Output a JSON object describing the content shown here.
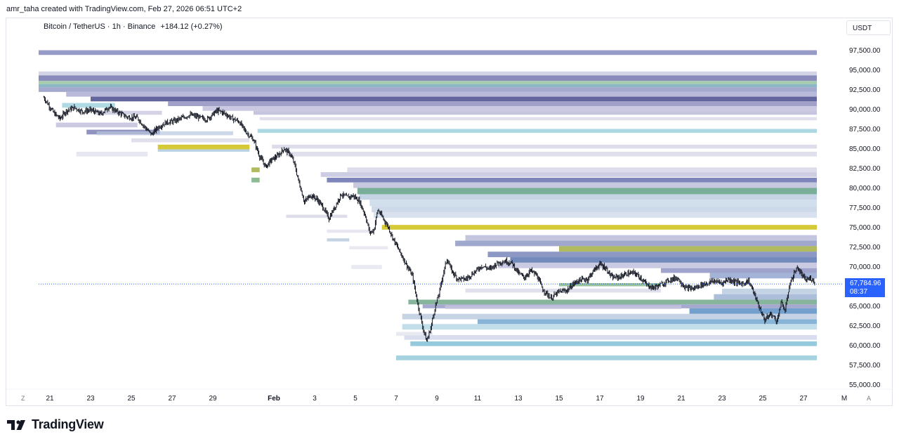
{
  "header": {
    "credit": "amr_taha created with TradingView.com, Feb 27, 2026 06:51 UTC+2"
  },
  "legend": {
    "title": "Bitcoin / TetherUS · 1h · Binance",
    "change": "+184.12 (+0.27%)"
  },
  "currency_button": "USDT",
  "price_tag": {
    "price": "67,784.96",
    "countdown": "08:37"
  },
  "corner_buttons": {
    "left": "Z",
    "right": "A"
  },
  "footer": {
    "logo_text": "TradingView"
  },
  "colors": {
    "accent": "#2962ff",
    "candle": "#131722",
    "band_purple": "#7d7fb4",
    "band_violet": "#b6b4d3",
    "band_blue": "#5b8fc3",
    "band_cyan": "#9fd0df",
    "band_green": "#6fae90",
    "band_yellow": "#d4c62d",
    "band_light": "#e2e3ee"
  },
  "chart_data": {
    "type": "line",
    "symbol": "BTCUSDT",
    "interval": "1h",
    "ylim": [
      54000,
      99500
    ],
    "y_ticks": [
      "97,500.00",
      "95,000.00",
      "92,500.00",
      "90,000.00",
      "87,500.00",
      "85,000.00",
      "82,500.00",
      "80,000.00",
      "77,500.00",
      "75,000.00",
      "72,500.00",
      "70,000.00",
      "67,500.00",
      "65,000.00",
      "62,500.00",
      "60,000.00",
      "57,500.00",
      "55,000.00"
    ],
    "y_tick_values": [
      97500,
      95000,
      92500,
      90000,
      87500,
      85000,
      82500,
      80000,
      77500,
      75000,
      72500,
      70000,
      67500,
      65000,
      62500,
      60000,
      57500,
      55000
    ],
    "x_ticks": [
      {
        "label": "21",
        "day": 0
      },
      {
        "label": "23",
        "day": 2
      },
      {
        "label": "25",
        "day": 4
      },
      {
        "label": "27",
        "day": 6
      },
      {
        "label": "29",
        "day": 8
      },
      {
        "label": "Feb",
        "day": 11
      },
      {
        "label": "3",
        "day": 13
      },
      {
        "label": "5",
        "day": 15
      },
      {
        "label": "7",
        "day": 17
      },
      {
        "label": "9",
        "day": 19
      },
      {
        "label": "11",
        "day": 21
      },
      {
        "label": "13",
        "day": 23
      },
      {
        "label": "15",
        "day": 25
      },
      {
        "label": "17",
        "day": 27
      },
      {
        "label": "19",
        "day": 29
      },
      {
        "label": "21",
        "day": 31
      },
      {
        "label": "23",
        "day": 33
      },
      {
        "label": "25",
        "day": 35
      },
      {
        "label": "27",
        "day": 37
      },
      {
        "label": "M",
        "day": 39
      }
    ],
    "last_price": 67784.96,
    "price_path": [
      [
        -0.3,
        91500
      ],
      [
        0.2,
        89500
      ],
      [
        0.5,
        88800
      ],
      [
        0.8,
        89800
      ],
      [
        1.2,
        90200
      ],
      [
        1.6,
        89700
      ],
      [
        2.0,
        89900
      ],
      [
        2.5,
        89400
      ],
      [
        2.9,
        90300
      ],
      [
        3.3,
        89700
      ],
      [
        3.8,
        89000
      ],
      [
        4.3,
        88900
      ],
      [
        4.7,
        87600
      ],
      [
        5.0,
        86800
      ],
      [
        5.3,
        87700
      ],
      [
        5.7,
        88300
      ],
      [
        6.1,
        88500
      ],
      [
        6.5,
        88900
      ],
      [
        6.9,
        89300
      ],
      [
        7.3,
        89000
      ],
      [
        7.7,
        88700
      ],
      [
        8.2,
        89800
      ],
      [
        8.5,
        89600
      ],
      [
        8.9,
        88900
      ],
      [
        9.3,
        88400
      ],
      [
        9.6,
        87200
      ],
      [
        10.0,
        86100
      ],
      [
        10.3,
        84000
      ],
      [
        10.6,
        82700
      ],
      [
        10.9,
        83600
      ],
      [
        11.2,
        84100
      ],
      [
        11.5,
        85000
      ],
      [
        11.8,
        84300
      ],
      [
        12.0,
        83100
      ],
      [
        12.2,
        81000
      ],
      [
        12.5,
        78200
      ],
      [
        12.8,
        79100
      ],
      [
        13.1,
        78600
      ],
      [
        13.4,
        77600
      ],
      [
        13.7,
        76100
      ],
      [
        14.0,
        77600
      ],
      [
        14.3,
        79200
      ],
      [
        14.6,
        78800
      ],
      [
        14.9,
        79000
      ],
      [
        15.2,
        78300
      ],
      [
        15.5,
        76400
      ],
      [
        15.7,
        74300
      ],
      [
        15.9,
        74600
      ],
      [
        16.1,
        77200
      ],
      [
        16.3,
        76400
      ],
      [
        16.6,
        75100
      ],
      [
        16.9,
        73300
      ],
      [
        17.2,
        71800
      ],
      [
        17.5,
        70300
      ],
      [
        17.8,
        68800
      ],
      [
        18.1,
        64800
      ],
      [
        18.3,
        62400
      ],
      [
        18.5,
        60500
      ],
      [
        18.7,
        62200
      ],
      [
        18.9,
        64700
      ],
      [
        19.1,
        66500
      ],
      [
        19.3,
        69000
      ],
      [
        19.5,
        71000
      ],
      [
        19.7,
        69600
      ],
      [
        20.0,
        68500
      ],
      [
        20.4,
        68400
      ],
      [
        20.8,
        69200
      ],
      [
        21.2,
        70100
      ],
      [
        21.6,
        69700
      ],
      [
        22.0,
        70500
      ],
      [
        22.4,
        70700
      ],
      [
        22.7,
        70400
      ],
      [
        23.0,
        69200
      ],
      [
        23.3,
        68600
      ],
      [
        23.6,
        69500
      ],
      [
        23.9,
        68900
      ],
      [
        24.2,
        67100
      ],
      [
        24.6,
        66000
      ],
      [
        25.0,
        66800
      ],
      [
        25.4,
        67000
      ],
      [
        25.7,
        67800
      ],
      [
        26.0,
        68300
      ],
      [
        26.4,
        68400
      ],
      [
        26.7,
        69500
      ],
      [
        27.0,
        70300
      ],
      [
        27.3,
        69800
      ],
      [
        27.6,
        68600
      ],
      [
        28.0,
        68700
      ],
      [
        28.3,
        69100
      ],
      [
        28.7,
        69200
      ],
      [
        29.0,
        68600
      ],
      [
        29.3,
        67700
      ],
      [
        29.6,
        67300
      ],
      [
        30.0,
        67700
      ],
      [
        30.4,
        68300
      ],
      [
        30.8,
        68600
      ],
      [
        31.2,
        67300
      ],
      [
        31.6,
        67200
      ],
      [
        32.0,
        67700
      ],
      [
        32.3,
        67900
      ],
      [
        32.6,
        68200
      ],
      [
        33.0,
        67900
      ],
      [
        33.3,
        68400
      ],
      [
        33.6,
        68100
      ],
      [
        34.0,
        67800
      ],
      [
        34.3,
        68200
      ],
      [
        34.5,
        67100
      ],
      [
        34.8,
        65000
      ],
      [
        35.1,
        63200
      ],
      [
        35.4,
        64000
      ],
      [
        35.7,
        63100
      ],
      [
        35.9,
        65400
      ],
      [
        36.1,
        64400
      ],
      [
        36.3,
        67500
      ],
      [
        36.5,
        68900
      ],
      [
        36.7,
        69900
      ],
      [
        36.9,
        69000
      ],
      [
        37.1,
        68300
      ],
      [
        37.4,
        68500
      ],
      [
        37.7,
        67500
      ],
      [
        38.0,
        67300
      ],
      [
        38.2,
        67785
      ]
    ],
    "liquidity_bands": [
      {
        "lo": 96900,
        "hi": 97500,
        "x0": -1.2,
        "color": "#8b8fc0",
        "op": 0.9
      },
      {
        "lo": 94300,
        "hi": 94800,
        "x0": -1.2,
        "color": "#b4b8d6",
        "op": 0.6
      },
      {
        "lo": 93600,
        "hi": 94300,
        "x0": -1.2,
        "color": "#7c80b3",
        "op": 0.9
      },
      {
        "lo": 93200,
        "hi": 93600,
        "x0": -1.2,
        "color": "#9cc7a5",
        "op": 0.9
      },
      {
        "lo": 92800,
        "hi": 93200,
        "x0": -1.2,
        "color": "#6fa8b6",
        "op": 0.8
      },
      {
        "lo": 92200,
        "hi": 92800,
        "x0": -1.2,
        "color": "#8f93c2",
        "op": 0.8
      },
      {
        "lo": 91600,
        "hi": 92200,
        "x0": 0.8,
        "color": "#a7a9cf",
        "op": 0.8
      },
      {
        "lo": 91000,
        "hi": 91600,
        "x0": 2.0,
        "color": "#5b5e99",
        "op": 0.95
      },
      {
        "lo": 90400,
        "hi": 91000,
        "x0": 5.8,
        "color": "#8f8fc0",
        "op": 0.85
      },
      {
        "lo": 89800,
        "hi": 90400,
        "x0": 7.5,
        "color": "#c1bfdc",
        "op": 0.85
      },
      {
        "lo": 89300,
        "hi": 89800,
        "x0": 10.0,
        "color": "#b8b6d6",
        "op": 0.8
      },
      {
        "lo": 88600,
        "hi": 89000,
        "x0": 10.3,
        "color": "#d8d8e8",
        "op": 0.8
      },
      {
        "lo": 87000,
        "hi": 87500,
        "x0": 10.2,
        "color": "#a7d6e0",
        "op": 0.95
      },
      {
        "lo": 85000,
        "hi": 85500,
        "x0": 10.9,
        "color": "#d4d3e6",
        "op": 0.8
      },
      {
        "lo": 84000,
        "hi": 84600,
        "x0": 11.6,
        "color": "#d8d8e8",
        "op": 0.8
      },
      {
        "lo": 82000,
        "hi": 82600,
        "x0": 14.6,
        "color": "#d4d3e6",
        "op": 0.8
      },
      {
        "lo": 81400,
        "hi": 82000,
        "x0": 13.3,
        "color": "#c3c3de",
        "op": 0.85
      },
      {
        "lo": 80700,
        "hi": 81300,
        "x0": 13.6,
        "color": "#6f78b2",
        "op": 0.9
      },
      {
        "lo": 80000,
        "hi": 80700,
        "x0": 14.9,
        "color": "#b8bad8",
        "op": 0.8
      },
      {
        "lo": 79200,
        "hi": 80000,
        "x0": 15.1,
        "color": "#6aa58e",
        "op": 0.9
      },
      {
        "lo": 78500,
        "hi": 79200,
        "x0": 15.2,
        "color": "#b7c9df",
        "op": 0.8
      },
      {
        "lo": 77700,
        "hi": 78500,
        "x0": 15.7,
        "color": "#c5d6e7",
        "op": 0.8
      },
      {
        "lo": 76900,
        "hi": 77700,
        "x0": 15.8,
        "color": "#c2cfe3",
        "op": 0.8
      },
      {
        "lo": 76200,
        "hi": 76900,
        "x0": 15.9,
        "color": "#cfd9ea",
        "op": 0.8
      },
      {
        "lo": 74700,
        "hi": 75300,
        "x0": 16.3,
        "color": "#d4c62d",
        "op": 0.95
      },
      {
        "lo": 73300,
        "hi": 74000,
        "x0": 20.4,
        "color": "#b4b8d6",
        "op": 0.8
      },
      {
        "lo": 72600,
        "hi": 73300,
        "x0": 19.9,
        "color": "#8f9ac4",
        "op": 0.85
      },
      {
        "lo": 71900,
        "hi": 72600,
        "x0": 25.0,
        "color": "#a9b34e",
        "op": 0.9
      },
      {
        "lo": 71200,
        "hi": 71900,
        "x0": 21.5,
        "color": "#7986bb",
        "op": 0.85
      },
      {
        "lo": 70500,
        "hi": 71200,
        "x0": 22.6,
        "color": "#5b76b0",
        "op": 0.85
      },
      {
        "lo": 69800,
        "hi": 70500,
        "x0": 22.0,
        "color": "#b8bad8",
        "op": 0.75
      },
      {
        "lo": 69200,
        "hi": 69800,
        "x0": 30.0,
        "color": "#8f93c2",
        "op": 0.85
      },
      {
        "lo": 68500,
        "hi": 69200,
        "x0": 32.4,
        "color": "#8ca0cd",
        "op": 0.8
      },
      {
        "lo": 66500,
        "hi": 67200,
        "x0": 33.0,
        "color": "#b7c9df",
        "op": 0.8
      },
      {
        "lo": 65800,
        "hi": 66500,
        "x0": 32.6,
        "color": "#9fb3d4",
        "op": 0.85
      },
      {
        "lo": 65200,
        "hi": 65800,
        "x0": 17.6,
        "color": "#71a88b",
        "op": 0.85
      },
      {
        "lo": 64700,
        "hi": 65200,
        "x0": 18.3,
        "color": "#8f93c2",
        "op": 0.8
      },
      {
        "lo": 64000,
        "hi": 64700,
        "x0": 31.4,
        "color": "#5b8fc3",
        "op": 0.85
      },
      {
        "lo": 63300,
        "hi": 64000,
        "x0": 17.3,
        "color": "#b8c8df",
        "op": 0.8
      },
      {
        "lo": 62700,
        "hi": 63300,
        "x0": 21.0,
        "color": "#73a8d0",
        "op": 0.85
      },
      {
        "lo": 62000,
        "hi": 62700,
        "x0": 17.3,
        "color": "#b4d6e6",
        "op": 0.8
      },
      {
        "lo": 60700,
        "hi": 61300,
        "x0": 17.4,
        "color": "#cfd4e8",
        "op": 0.8
      },
      {
        "lo": 59900,
        "hi": 60500,
        "x0": 17.7,
        "color": "#8fc6da",
        "op": 0.95
      },
      {
        "lo": 58100,
        "hi": 58700,
        "x0": 17.0,
        "color": "#9fd0df",
        "op": 0.95
      }
    ],
    "history_bands": [
      {
        "lo": 90200,
        "hi": 90800,
        "x0": 0.6,
        "x1": 3.2,
        "color": "#a7d6e0",
        "op": 0.9
      },
      {
        "lo": 89300,
        "hi": 89800,
        "x0": 2.2,
        "x1": 5.5,
        "color": "#c9c8e0",
        "op": 0.8
      },
      {
        "lo": 87700,
        "hi": 88300,
        "x0": 0.3,
        "x1": 4.3,
        "color": "#c1bfdc",
        "op": 0.85
      },
      {
        "lo": 86800,
        "hi": 87400,
        "x0": 1.8,
        "x1": 5.4,
        "color": "#7d7fb4",
        "op": 0.85
      },
      {
        "lo": 85800,
        "hi": 86300,
        "x0": 4.0,
        "x1": 9.8,
        "color": "#d8d8e8",
        "op": 0.8
      },
      {
        "lo": 84900,
        "hi": 85500,
        "x0": 5.3,
        "x1": 9.8,
        "color": "#d4c62d",
        "op": 0.95
      },
      {
        "lo": 84600,
        "hi": 84900,
        "x0": 5.3,
        "x1": 9.8,
        "color": "#a7c8df",
        "op": 0.8
      },
      {
        "lo": 84000,
        "hi": 84600,
        "x0": 1.3,
        "x1": 4.8,
        "color": "#e2e3ee",
        "op": 0.85
      },
      {
        "lo": 86700,
        "hi": 87200,
        "x0": 2.3,
        "x1": 9.0,
        "color": "#b8c8df",
        "op": 0.7
      },
      {
        "lo": 82000,
        "hi": 82600,
        "x0": 9.9,
        "x1": 10.3,
        "color": "#a9b34e",
        "op": 0.9
      },
      {
        "lo": 80700,
        "hi": 81300,
        "x0": 9.9,
        "x1": 10.3,
        "color": "#7fb38a",
        "op": 0.9
      },
      {
        "lo": 76200,
        "hi": 76600,
        "x0": 11.6,
        "x1": 14.6,
        "color": "#d8d8e8",
        "op": 0.85
      },
      {
        "lo": 74300,
        "hi": 74700,
        "x0": 13.6,
        "x1": 15.8,
        "color": "#e2e3ee",
        "op": 0.85
      },
      {
        "lo": 73200,
        "hi": 73600,
        "x0": 13.6,
        "x1": 14.7,
        "color": "#b7c9df",
        "op": 0.8
      },
      {
        "lo": 72200,
        "hi": 72600,
        "x0": 14.7,
        "x1": 16.6,
        "color": "#e2e3ee",
        "op": 0.8
      },
      {
        "lo": 69700,
        "hi": 70200,
        "x0": 14.8,
        "x1": 16.3,
        "color": "#e2e3ee",
        "op": 0.8
      },
      {
        "lo": 64600,
        "hi": 65100,
        "x0": 19.4,
        "x1": 31.0,
        "color": "#c9c8e0",
        "op": 0.75
      },
      {
        "lo": 66700,
        "hi": 67200,
        "x0": 20.4,
        "x1": 30.0,
        "color": "#d8d8e8",
        "op": 0.8
      },
      {
        "lo": 67500,
        "hi": 67900,
        "x0": 25.0,
        "x1": 30.0,
        "color": "#7fb38a",
        "op": 0.8
      },
      {
        "lo": 61200,
        "hi": 61700,
        "x0": 17.0,
        "x1": 18.8,
        "color": "#e2e3ee",
        "op": 0.8
      }
    ]
  }
}
